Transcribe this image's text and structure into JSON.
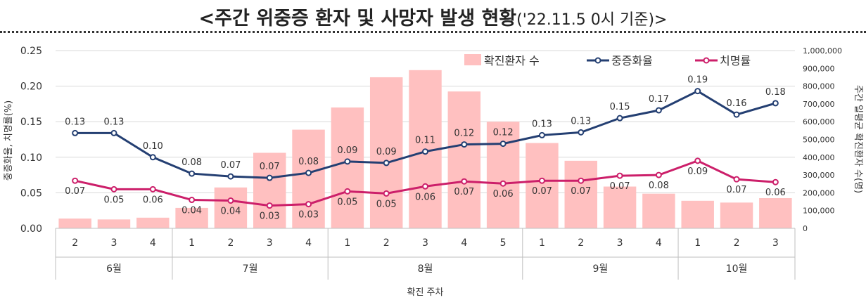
{
  "title": {
    "main": "<주간 위중증 환자 및 사망자 발생 현황",
    "sub": "('22.11.5 0시 기준)>"
  },
  "chart_data": {
    "type": "bar+line",
    "xlabel": "확진 주차",
    "ylabel_left": "중증화율, 치명률(%)",
    "ylabel_right": "주간 일평균 확진환자 수(명)",
    "ylim_left": [
      0,
      0.25
    ],
    "ylim_right": [
      0,
      1000000
    ],
    "yticks_left": [
      "0.00",
      "0.05",
      "0.10",
      "0.15",
      "0.20",
      "0.25"
    ],
    "yticks_right": [
      "0",
      "100,000",
      "200,000",
      "300,000",
      "400,000",
      "500,000",
      "600,000",
      "700,000",
      "800,000",
      "900,000",
      "1,000,000"
    ],
    "weeks": [
      "2",
      "3",
      "4",
      "1",
      "2",
      "3",
      "4",
      "1",
      "2",
      "3",
      "4",
      "5",
      "1",
      "2",
      "3",
      "4",
      "1",
      "2",
      "3"
    ],
    "months": [
      {
        "label": "6월",
        "count": 3
      },
      {
        "label": "7월",
        "count": 4
      },
      {
        "label": "8월",
        "count": 5
      },
      {
        "label": "9월",
        "count": 4
      },
      {
        "label": "10월",
        "count": 3
      }
    ],
    "series": [
      {
        "name": "확진환자 수",
        "type": "bar",
        "color": "#ffc0c0",
        "values": [
          55000,
          50000,
          60000,
          115000,
          230000,
          425000,
          555000,
          680000,
          850000,
          890000,
          770000,
          600000,
          480000,
          380000,
          235000,
          195000,
          155000,
          145000,
          170000
        ]
      },
      {
        "name": "중증화율",
        "type": "line",
        "color": "#243f72",
        "values": [
          0.134,
          0.134,
          0.1,
          0.077,
          0.073,
          0.071,
          0.078,
          0.094,
          0.092,
          0.108,
          0.118,
          0.119,
          0.131,
          0.135,
          0.155,
          0.166,
          0.193,
          0.16,
          0.176
        ],
        "labels": [
          "0.13",
          "0.13",
          "0.10",
          "0.08",
          "0.07",
          "0.07",
          "0.08",
          "0.09",
          "0.09",
          "0.11",
          "0.12",
          "0.12",
          "0.13",
          "0.13",
          "0.15",
          "0.17",
          "0.19",
          "0.16",
          "0.18"
        ]
      },
      {
        "name": "치명률",
        "type": "line",
        "color": "#cc1f6a",
        "values": [
          0.067,
          0.055,
          0.055,
          0.04,
          0.039,
          0.032,
          0.034,
          0.052,
          0.049,
          0.059,
          0.066,
          0.063,
          0.067,
          0.067,
          0.074,
          0.075,
          0.095,
          0.069,
          0.065
        ],
        "labels": [
          "0.07",
          "0.05",
          "0.06",
          "0.04",
          "0.04",
          "0.03",
          "0.03",
          "0.05",
          "0.05",
          "0.06",
          "0.07",
          "0.06",
          "0.07",
          "0.07",
          "0.07",
          "0.08",
          "0.09",
          "0.07",
          "0.06"
        ]
      }
    ],
    "legend_position": "top-right",
    "grid": true
  }
}
